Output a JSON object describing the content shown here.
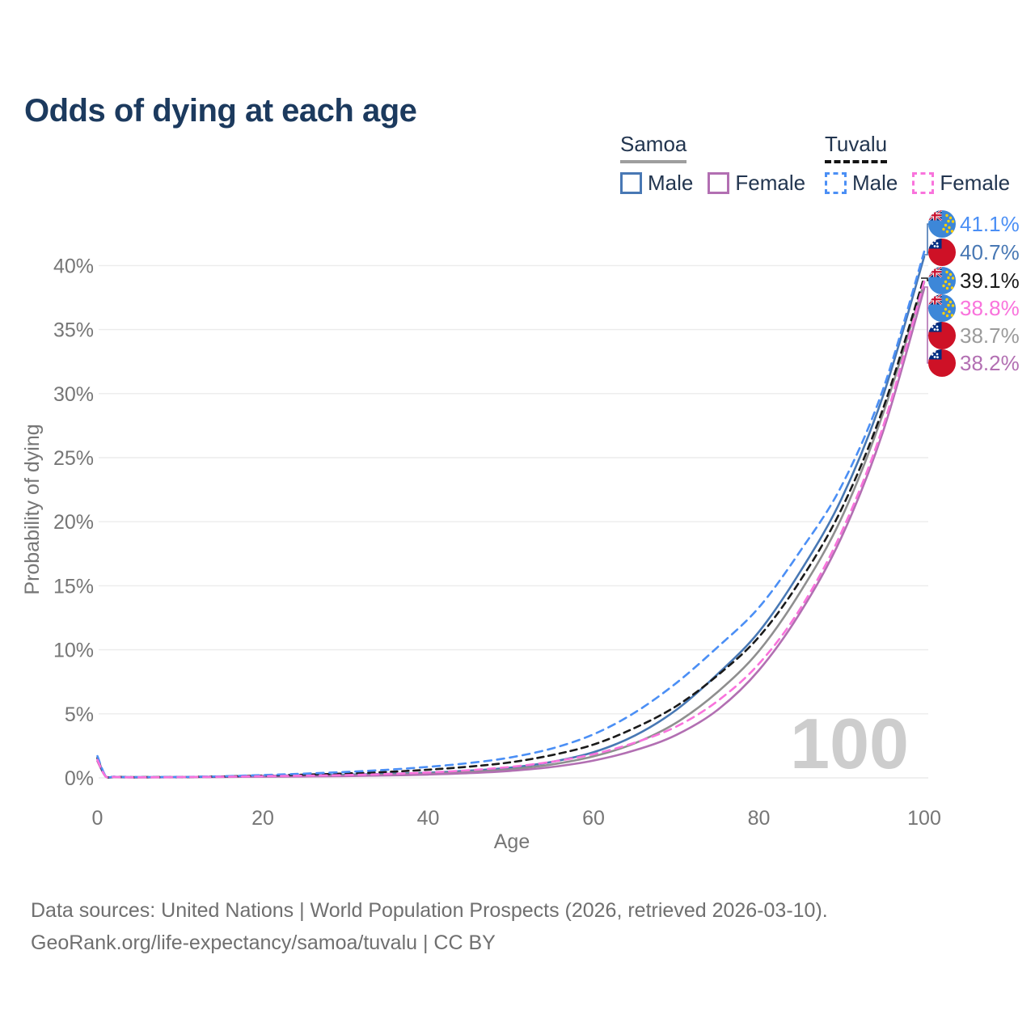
{
  "title": "Odds of dying at each age",
  "legend": {
    "groups": [
      {
        "label": "Samoa",
        "line_style": "solid",
        "underline_color": "#9e9e9e",
        "items": [
          {
            "label": "Male",
            "color": "#4878b4"
          },
          {
            "label": "Female",
            "color": "#b26fb2"
          }
        ]
      },
      {
        "label": "Tuvalu",
        "line_style": "dashed",
        "underline_color": "#141414",
        "items": [
          {
            "label": "Male",
            "color": "#4b8ff5"
          },
          {
            "label": "Female",
            "color": "#f973dc"
          }
        ]
      }
    ]
  },
  "watermark": "100",
  "footer": {
    "line1": "Data sources: United Nations | World Population Prospects (2026, retrieved 2026-03-10).",
    "line2": "GeoRank.org/life-expectancy/samoa/tuvalu | CC BY"
  },
  "chart_data": {
    "type": "line",
    "title": "Odds of dying at each age",
    "xlabel": "Age",
    "ylabel": "Probability of dying",
    "x_ticks": [
      0,
      20,
      40,
      60,
      80,
      100
    ],
    "y_ticks": [
      0,
      5,
      10,
      15,
      20,
      25,
      30,
      35,
      40
    ],
    "y_tick_suffix": "%",
    "xlim": [
      0,
      100
    ],
    "ylim": [
      0,
      40
    ],
    "grid": true,
    "x": [
      0,
      1,
      2,
      3,
      4,
      5,
      10,
      15,
      20,
      25,
      30,
      35,
      40,
      45,
      50,
      55,
      60,
      65,
      70,
      75,
      80,
      85,
      90,
      95,
      100
    ],
    "series": [
      {
        "name": "Samoa Male",
        "country": "Samoa",
        "sex": "Male",
        "style": "solid",
        "color": "#4878b4",
        "end_value_pct": 40.7,
        "values": [
          1.55,
          0.12,
          0.08,
          0.06,
          0.05,
          0.05,
          0.06,
          0.1,
          0.16,
          0.2,
          0.25,
          0.31,
          0.4,
          0.56,
          0.8,
          1.25,
          2.0,
          3.3,
          5.3,
          8.1,
          11.4,
          16.1,
          21.8,
          29.8,
          40.7
        ]
      },
      {
        "name": "Samoa Both sexes",
        "country": "Samoa",
        "sex": "Both",
        "style": "solid",
        "color": "#8f8f8f",
        "end_value_pct": 38.7,
        "values": [
          1.42,
          0.11,
          0.075,
          0.055,
          0.045,
          0.045,
          0.055,
          0.085,
          0.125,
          0.155,
          0.195,
          0.25,
          0.33,
          0.46,
          0.67,
          1.05,
          1.68,
          2.7,
          4.3,
          6.7,
          9.9,
          14.5,
          20.3,
          28.4,
          38.7
        ]
      },
      {
        "name": "Samoa Female",
        "country": "Samoa",
        "sex": "Female",
        "style": "solid",
        "color": "#b26fb2",
        "end_value_pct": 38.2,
        "values": [
          1.3,
          0.1,
          0.07,
          0.05,
          0.04,
          0.04,
          0.05,
          0.07,
          0.09,
          0.11,
          0.14,
          0.19,
          0.26,
          0.37,
          0.55,
          0.85,
          1.35,
          2.15,
          3.35,
          5.3,
          8.4,
          12.9,
          18.8,
          27.0,
          38.2
        ]
      },
      {
        "name": "Tuvalu Both sexes",
        "country": "Tuvalu",
        "sex": "Both",
        "style": "dashed",
        "color": "#1a1a1a",
        "end_value_pct": 39.1,
        "values": [
          1.55,
          0.125,
          0.08,
          0.06,
          0.055,
          0.055,
          0.065,
          0.105,
          0.175,
          0.25,
          0.34,
          0.46,
          0.64,
          0.88,
          1.22,
          1.78,
          2.6,
          3.9,
          5.6,
          8.0,
          11.0,
          15.4,
          21.0,
          28.8,
          39.1
        ]
      },
      {
        "name": "Tuvalu Male",
        "country": "Tuvalu",
        "sex": "Male",
        "style": "dashed",
        "color": "#4b8ff5",
        "end_value_pct": 41.1,
        "values": [
          1.7,
          0.14,
          0.09,
          0.07,
          0.06,
          0.06,
          0.07,
          0.12,
          0.22,
          0.33,
          0.46,
          0.63,
          0.86,
          1.16,
          1.6,
          2.3,
          3.4,
          5.1,
          7.4,
          10.2,
          13.3,
          17.7,
          22.8,
          30.3,
          41.1
        ]
      },
      {
        "name": "Tuvalu Female",
        "country": "Tuvalu",
        "sex": "Female",
        "style": "dashed",
        "color": "#f973dc",
        "end_value_pct": 38.8,
        "values": [
          1.4,
          0.11,
          0.075,
          0.055,
          0.05,
          0.05,
          0.06,
          0.09,
          0.13,
          0.17,
          0.22,
          0.3,
          0.42,
          0.6,
          0.86,
          1.26,
          1.85,
          2.75,
          4.0,
          6.0,
          8.9,
          13.2,
          19.2,
          27.4,
          38.8
        ]
      }
    ],
    "end_labels": [
      {
        "value_label": "41.1%",
        "pct": 41.1,
        "flag": "tuvalu",
        "series": "Tuvalu Male",
        "color": "#4b8ff5"
      },
      {
        "value_label": "40.7%",
        "pct": 40.7,
        "flag": "samoa",
        "series": "Samoa Male",
        "color": "#4878b4"
      },
      {
        "value_label": "39.1%",
        "pct": 39.1,
        "flag": "tuvalu",
        "series": "Tuvalu Both sexes",
        "color": "#1a1a1a"
      },
      {
        "value_label": "38.8%",
        "pct": 38.8,
        "flag": "tuvalu",
        "series": "Tuvalu Female",
        "color": "#f973dc"
      },
      {
        "value_label": "38.7%",
        "pct": 38.7,
        "flag": "samoa",
        "series": "Samoa Both sexes",
        "color": "#9b9b9b"
      },
      {
        "value_label": "38.2%",
        "pct": 38.2,
        "flag": "samoa",
        "series": "Samoa Female",
        "color": "#b26fb2"
      }
    ],
    "legend_position": "top-right",
    "watermark_text": "100"
  },
  "colors": {
    "title": "#1c3a5e",
    "axis_text": "#767676",
    "gridline": "#ececec",
    "watermark": "#cdcdcd",
    "footer_text": "#6f6f6f",
    "legend_text": "#22354f"
  }
}
